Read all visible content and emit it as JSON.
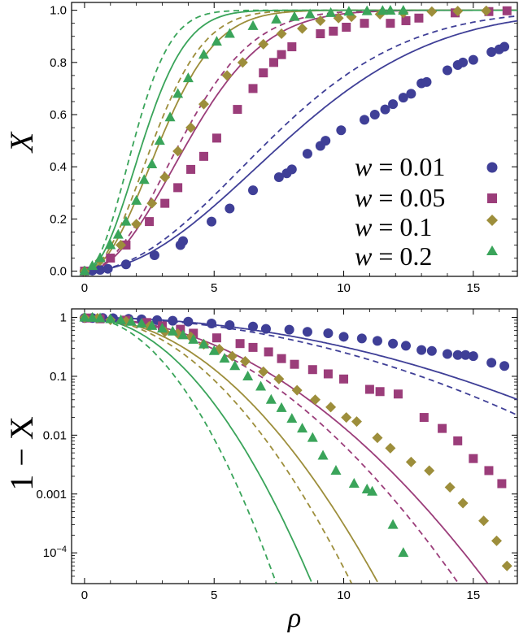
{
  "colors": {
    "w001": "#3f3f97",
    "w005": "#9b3d7a",
    "w01": "#9d8e3b",
    "w02": "#3aa45a"
  },
  "chart_data": [
    {
      "type": "scatter",
      "title": "",
      "xlabel": "",
      "ylabel": "X",
      "xlim": [
        -0.5,
        16.7
      ],
      "ylim": [
        -0.02,
        1.03
      ],
      "x_ticks": [
        "0",
        "5",
        "10",
        "15"
      ],
      "y_ticks": [
        "0.0",
        "0.2",
        "0.4",
        "0.6",
        "0.8",
        "1.0"
      ],
      "legend_position": "right",
      "series": [
        {
          "name": "w = 0.01",
          "w": "0.01",
          "marker": "circle",
          "color": "#3f3f97",
          "k_solid": 0.0115,
          "k_dashed": 0.0137,
          "x": [
            0.0,
            0.3,
            0.6,
            0.9,
            1.6,
            2.7,
            3.7,
            3.8,
            4.9,
            5.6,
            6.5,
            7.5,
            7.8,
            8.0,
            8.6,
            9.1,
            9.3,
            9.9,
            10.8,
            11.2,
            11.6,
            11.9,
            12.3,
            12.6,
            13.0,
            13.2,
            14.0,
            14.4,
            14.6,
            15.0,
            15.7,
            16.0,
            16.2
          ],
          "y": [
            0.0,
            0.002,
            0.005,
            0.009,
            0.026,
            0.061,
            0.1,
            0.115,
            0.19,
            0.24,
            0.31,
            0.36,
            0.375,
            0.39,
            0.45,
            0.48,
            0.5,
            0.54,
            0.58,
            0.6,
            0.62,
            0.64,
            0.665,
            0.68,
            0.72,
            0.725,
            0.77,
            0.79,
            0.8,
            0.81,
            0.84,
            0.85,
            0.86
          ]
        },
        {
          "name": "w = 0.05",
          "w": "0.05",
          "marker": "square",
          "color": "#9b3d7a",
          "k_solid": 0.043,
          "k_dashed": 0.05,
          "x": [
            0.0,
            1.0,
            1.6,
            2.5,
            3.1,
            3.6,
            4.1,
            4.6,
            5.1,
            5.9,
            6.5,
            6.9,
            7.3,
            7.6,
            8.0,
            9.1,
            9.6,
            10.1,
            10.8,
            11.8,
            12.4,
            12.9,
            14.3,
            15.6,
            16.3
          ],
          "y": [
            0.0,
            0.05,
            0.1,
            0.19,
            0.26,
            0.32,
            0.39,
            0.44,
            0.51,
            0.62,
            0.7,
            0.76,
            0.8,
            0.83,
            0.86,
            0.91,
            0.92,
            0.935,
            0.95,
            0.95,
            0.96,
            0.97,
            0.99,
            0.995,
            0.998
          ]
        },
        {
          "name": "w = 0.1",
          "w": "0.1",
          "marker": "diamond",
          "color": "#9d8e3b",
          "k_solid": 0.081,
          "k_dashed": 0.098,
          "x": [
            0.0,
            0.6,
            1.4,
            2.0,
            2.6,
            3.1,
            3.6,
            4.1,
            4.6,
            5.5,
            6.1,
            6.9,
            7.6,
            8.4,
            9.1,
            9.8,
            10.3,
            11.4,
            12.3,
            13.4,
            14.4,
            15.5
          ],
          "y": [
            0.0,
            0.04,
            0.1,
            0.18,
            0.26,
            0.36,
            0.46,
            0.55,
            0.64,
            0.75,
            0.8,
            0.87,
            0.91,
            0.93,
            0.96,
            0.97,
            0.975,
            0.985,
            0.99,
            0.995,
            0.997,
            0.998
          ]
        },
        {
          "name": "w = 0.2",
          "w": "0.2",
          "marker": "triangle",
          "color": "#3aa45a",
          "k_solid": 0.135,
          "k_dashed": 0.19,
          "x": [
            0.0,
            0.3,
            0.6,
            1.0,
            1.3,
            1.6,
            2.0,
            2.3,
            2.6,
            2.9,
            3.3,
            3.6,
            4.0,
            4.6,
            5.1,
            5.6,
            6.5,
            7.4,
            8.1,
            8.7,
            9.5,
            10.2,
            10.9,
            11.5,
            11.8,
            12.3
          ],
          "y": [
            0.0,
            0.02,
            0.05,
            0.1,
            0.14,
            0.19,
            0.27,
            0.35,
            0.41,
            0.5,
            0.59,
            0.68,
            0.74,
            0.83,
            0.88,
            0.91,
            0.94,
            0.965,
            0.975,
            0.985,
            0.99,
            0.995,
            0.997,
            0.998,
            0.999,
            0.999
          ]
        }
      ]
    },
    {
      "type": "scatter",
      "title": "",
      "xlabel": "ρ",
      "ylabel": "1 − X",
      "yscale": "log",
      "xlim": [
        -0.5,
        16.7
      ],
      "ylim": [
        3e-05,
        1.4
      ],
      "x_ticks": [
        "0",
        "5",
        "10",
        "15"
      ],
      "y_ticks": [
        {
          "label": "1",
          "value": 1
        },
        {
          "label": "0.1",
          "value": 0.1
        },
        {
          "label": "0.01",
          "value": 0.01
        },
        {
          "label": "0.001",
          "value": 0.001
        },
        {
          "label": "10",
          "sup": "−4",
          "value": 0.0001
        }
      ],
      "series": [
        {
          "name": "w = 0.01",
          "marker": "circle",
          "color": "#3f3f97",
          "k_solid": 0.0115,
          "k_dashed": 0.0137,
          "x": [
            0.0,
            0.3,
            0.7,
            1.1,
            1.7,
            2.2,
            2.8,
            3.4,
            4.0,
            4.9,
            5.6,
            6.5,
            7.0,
            7.9,
            8.6,
            9.4,
            10.0,
            10.7,
            11.3,
            11.9,
            12.4,
            13.0,
            13.4,
            14.0,
            14.4,
            14.7,
            15.0,
            15.7,
            16.2
          ],
          "y": [
            0.98,
            0.98,
            0.98,
            0.97,
            0.95,
            0.93,
            0.9,
            0.88,
            0.85,
            0.79,
            0.74,
            0.7,
            0.64,
            0.62,
            0.57,
            0.54,
            0.47,
            0.44,
            0.4,
            0.36,
            0.33,
            0.28,
            0.27,
            0.24,
            0.23,
            0.23,
            0.22,
            0.17,
            0.15
          ]
        },
        {
          "name": "w = 0.05",
          "marker": "square",
          "color": "#9b3d7a",
          "k_solid": 0.043,
          "k_dashed": 0.05,
          "x": [
            0.1,
            0.6,
            1.6,
            2.4,
            3.0,
            3.7,
            4.2,
            5.1,
            6.0,
            6.5,
            7.1,
            7.6,
            8.1,
            8.8,
            9.4,
            10.0,
            11.0,
            11.4,
            12.1,
            13.1,
            13.8,
            14.4,
            15.0,
            15.6,
            16.1
          ],
          "y": [
            0.98,
            0.95,
            0.9,
            0.82,
            0.72,
            0.63,
            0.54,
            0.45,
            0.36,
            0.31,
            0.26,
            0.2,
            0.16,
            0.13,
            0.11,
            0.09,
            0.06,
            0.055,
            0.05,
            0.02,
            0.013,
            0.008,
            0.004,
            0.0025,
            0.0015
          ]
        },
        {
          "name": "w = 0.1",
          "marker": "diamond",
          "color": "#9d8e3b",
          "k_solid": 0.081,
          "k_dashed": 0.098,
          "x": [
            0.0,
            0.5,
            1.0,
            1.6,
            2.5,
            3.1,
            3.6,
            4.1,
            4.6,
            5.2,
            5.7,
            6.2,
            6.9,
            7.5,
            8.2,
            8.9,
            9.5,
            10.1,
            10.5,
            11.3,
            11.8,
            12.6,
            13.3,
            14.1,
            14.6,
            15.4,
            15.9,
            16.3
          ],
          "y": [
            0.99,
            0.97,
            0.91,
            0.86,
            0.71,
            0.57,
            0.53,
            0.47,
            0.35,
            0.29,
            0.22,
            0.18,
            0.12,
            0.09,
            0.058,
            0.04,
            0.03,
            0.02,
            0.017,
            0.009,
            0.006,
            0.0035,
            0.0025,
            0.0013,
            0.0007,
            0.00035,
            0.00016,
            6e-05
          ]
        },
        {
          "name": "w = 0.2",
          "marker": "triangle",
          "color": "#3aa45a",
          "k_solid": 0.135,
          "k_dashed": 0.19,
          "x": [
            0.0,
            0.3,
            0.6,
            1.0,
            1.4,
            1.8,
            2.2,
            2.6,
            3.0,
            3.4,
            3.8,
            4.2,
            4.6,
            5.0,
            5.4,
            5.8,
            6.3,
            6.8,
            7.2,
            7.6,
            8.0,
            8.4,
            8.8,
            9.2,
            9.7,
            10.4,
            10.9,
            11.1,
            11.9,
            12.3
          ],
          "y": [
            1.0,
            0.99,
            0.97,
            0.94,
            0.9,
            0.85,
            0.79,
            0.72,
            0.65,
            0.58,
            0.5,
            0.42,
            0.35,
            0.27,
            0.2,
            0.15,
            0.1,
            0.067,
            0.04,
            0.029,
            0.019,
            0.013,
            0.009,
            0.0045,
            0.0025,
            0.0015,
            0.0012,
            0.0011,
            0.0003,
            0.0001
          ]
        }
      ]
    }
  ]
}
